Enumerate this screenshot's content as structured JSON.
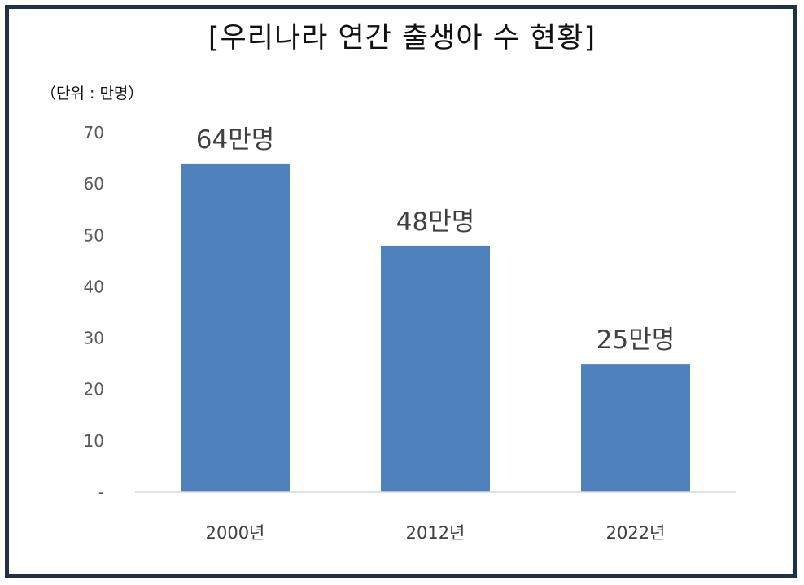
{
  "chart_data": {
    "type": "bar",
    "title": "[우리나라 연간 출생아 수 현황]",
    "unit_note": "（단위 : 만명）",
    "categories": [
      "2000년",
      "2012년",
      "2022년"
    ],
    "values": [
      64,
      48,
      25
    ],
    "data_labels": [
      "64만명",
      "48만명",
      "25만명"
    ],
    "yticks": [
      {
        "value": 0,
        "label": "-"
      },
      {
        "value": 10,
        "label": "10"
      },
      {
        "value": 20,
        "label": "20"
      },
      {
        "value": 30,
        "label": "30"
      },
      {
        "value": 40,
        "label": "40"
      },
      {
        "value": 50,
        "label": "50"
      },
      {
        "value": 60,
        "label": "60"
      },
      {
        "value": 70,
        "label": "70"
      }
    ],
    "ylim": [
      0,
      70
    ],
    "grid": false,
    "legend": "none",
    "bar_color": "#4f81bd",
    "frame_color": "#1f3146"
  }
}
